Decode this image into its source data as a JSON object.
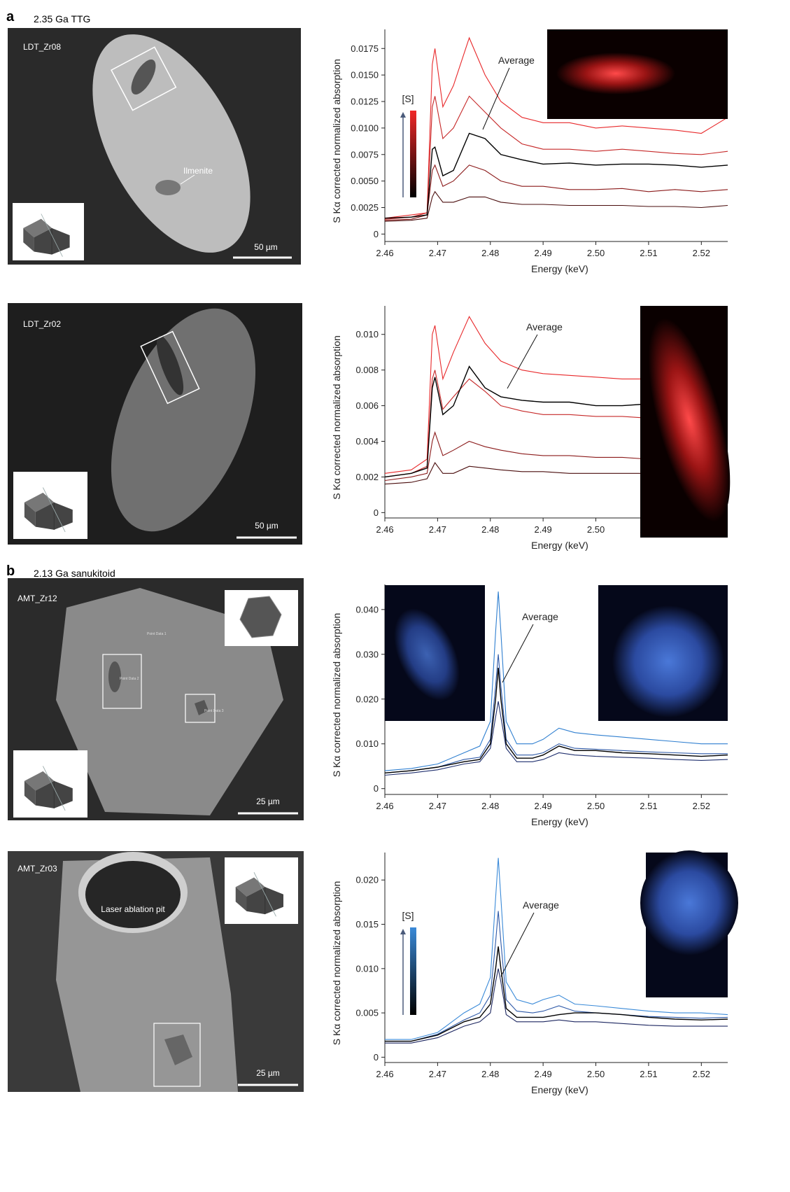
{
  "panel_labels": [
    {
      "letter": "a",
      "title": "2.35 Ga TTG"
    },
    {
      "letter": "b",
      "title": "2.13 Ga sanukitoid"
    }
  ],
  "images": [
    {
      "sample": "LDT_Zr08",
      "scale_bar": "50 µm",
      "annotations": [
        "Ilmenite"
      ]
    },
    {
      "sample": "LDT_Zr02",
      "scale_bar": "50 µm"
    },
    {
      "sample": "AMT_Zr12",
      "scale_bar": "25 µm",
      "annotations": [
        "Point Data 1",
        "Point Data 2",
        "Point Data 3"
      ]
    },
    {
      "sample": "AMT_Zr03",
      "scale_bar": "25 µm",
      "annotations": [
        "Laser ablation pit"
      ]
    }
  ],
  "chart_data": [
    {
      "type": "line",
      "xlabel": "Energy (keV)",
      "ylabel": "S Kα corrected normalized absorption",
      "annotation": "Average",
      "colorbar_label": "[S]",
      "xlim": [
        2.46,
        2.525
      ],
      "ylim": [
        -0.0007,
        0.0193
      ],
      "xticks": [
        2.46,
        2.47,
        2.48,
        2.49,
        {
          "value": 2.5,
          "label": "2.50"
        },
        2.51,
        2.52
      ],
      "yticks": [
        0,
        0.0025,
        {
          "value": 0.005,
          "label": "0.0050"
        },
        0.0075,
        {
          "value": 0.01,
          "label": "0.0100"
        },
        0.0125,
        {
          "value": 0.015,
          "label": "0.0150"
        },
        0.0175
      ],
      "x": [
        2.46,
        2.465,
        2.468,
        2.469,
        2.4695,
        2.471,
        2.473,
        2.476,
        2.479,
        2.482,
        2.486,
        2.49,
        2.495,
        2.5,
        2.505,
        2.51,
        2.515,
        2.52,
        2.525
      ],
      "series": [
        {
          "color": "#e8282a",
          "values": [
            0.0015,
            0.0018,
            0.002,
            0.016,
            0.0175,
            0.012,
            0.014,
            0.0185,
            0.015,
            0.0125,
            0.011,
            0.0105,
            0.0105,
            0.01,
            0.0102,
            0.01,
            0.0098,
            0.0095,
            0.011
          ]
        },
        {
          "color": "#c62828",
          "values": [
            0.0014,
            0.0016,
            0.002,
            0.012,
            0.013,
            0.009,
            0.01,
            0.013,
            0.0115,
            0.01,
            0.0085,
            0.008,
            0.008,
            0.0078,
            0.008,
            0.0078,
            0.0076,
            0.0075,
            0.0078
          ]
        },
        {
          "color": "#8b1a1a",
          "values": [
            0.0013,
            0.0014,
            0.0018,
            0.006,
            0.0065,
            0.0045,
            0.005,
            0.0065,
            0.006,
            0.005,
            0.0045,
            0.0045,
            0.0042,
            0.0042,
            0.0043,
            0.004,
            0.0042,
            0.004,
            0.0042
          ]
        },
        {
          "color": "#4a0d0d",
          "values": [
            0.0012,
            0.0013,
            0.0015,
            0.0035,
            0.004,
            0.003,
            0.003,
            0.0035,
            0.0035,
            0.003,
            0.0028,
            0.0028,
            0.0027,
            0.0027,
            0.0027,
            0.0026,
            0.0026,
            0.0025,
            0.0027
          ]
        },
        {
          "color": "#000000",
          "values": [
            0.0015,
            0.0016,
            0.0018,
            0.008,
            0.0082,
            0.0055,
            0.006,
            0.0095,
            0.009,
            0.0075,
            0.007,
            0.0066,
            0.0067,
            0.0065,
            0.0066,
            0.0066,
            0.0065,
            0.0063,
            0.0065
          ]
        }
      ]
    },
    {
      "type": "line",
      "xlabel": "Energy (keV)",
      "ylabel": "S Kα corrected normalized absorption",
      "annotation": "Average",
      "xlim": [
        2.46,
        2.525
      ],
      "ylim": [
        -0.0003,
        0.0116
      ],
      "xticks": [
        2.46,
        2.47,
        2.48,
        2.49,
        {
          "value": 2.5,
          "label": "2.50"
        },
        2.51,
        2.52
      ],
      "yticks": [
        0,
        0.002,
        0.004,
        0.006,
        0.008,
        {
          "value": 0.01,
          "label": "0.010"
        }
      ],
      "x": [
        2.46,
        2.465,
        2.468,
        2.469,
        2.4695,
        2.471,
        2.473,
        2.476,
        2.479,
        2.482,
        2.486,
        2.49,
        2.495,
        2.5,
        2.505,
        2.51,
        2.515,
        2.52,
        2.525
      ],
      "series": [
        {
          "color": "#e8282a",
          "values": [
            0.0022,
            0.0024,
            0.003,
            0.01,
            0.0105,
            0.0075,
            0.009,
            0.011,
            0.0095,
            0.0085,
            0.008,
            0.0078,
            0.0077,
            0.0076,
            0.0075,
            0.0075,
            0.0074,
            0.0073,
            0.0074
          ]
        },
        {
          "color": "#c62828",
          "values": [
            0.002,
            0.0022,
            0.0026,
            0.0075,
            0.008,
            0.0058,
            0.0065,
            0.0075,
            0.0068,
            0.006,
            0.0057,
            0.0055,
            0.0055,
            0.0054,
            0.0054,
            0.0053,
            0.0053,
            0.0052,
            0.0053
          ]
        },
        {
          "color": "#8b1a1a",
          "values": [
            0.0018,
            0.002,
            0.0022,
            0.004,
            0.0045,
            0.0032,
            0.0035,
            0.004,
            0.0037,
            0.0035,
            0.0033,
            0.0032,
            0.0032,
            0.0031,
            0.0031,
            0.003,
            0.003,
            0.003,
            0.003
          ]
        },
        {
          "color": "#4a0d0d",
          "values": [
            0.0016,
            0.0017,
            0.0019,
            0.0025,
            0.0028,
            0.0022,
            0.0022,
            0.0026,
            0.0025,
            0.0024,
            0.0023,
            0.0023,
            0.0022,
            0.0022,
            0.0022,
            0.0022,
            0.0022,
            0.0021,
            0.0022
          ]
        },
        {
          "color": "#000000",
          "values": [
            0.002,
            0.0022,
            0.0025,
            0.007,
            0.0076,
            0.0055,
            0.006,
            0.0082,
            0.007,
            0.0065,
            0.0063,
            0.0062,
            0.0062,
            0.006,
            0.006,
            0.0061,
            0.006,
            0.006,
            0.006
          ]
        }
      ]
    },
    {
      "type": "line",
      "xlabel": "Energy (keV)",
      "ylabel": "S Kα corrected normalized absorption",
      "annotation": "Average",
      "xlim": [
        2.46,
        2.525
      ],
      "ylim": [
        -0.0013,
        0.0456
      ],
      "xticks": [
        2.46,
        2.47,
        2.48,
        2.49,
        {
          "value": 2.5,
          "label": "2.50"
        },
        2.51,
        2.52
      ],
      "yticks": [
        0,
        {
          "value": 0.01,
          "label": "0.010"
        },
        {
          "value": 0.02,
          "label": "0.020"
        },
        {
          "value": 0.03,
          "label": "0.030"
        },
        {
          "value": 0.04,
          "label": "0.040"
        }
      ],
      "x": [
        2.46,
        2.465,
        2.47,
        2.475,
        2.478,
        2.48,
        2.481,
        2.4815,
        2.482,
        2.483,
        2.485,
        2.488,
        2.49,
        2.493,
        2.496,
        2.5,
        2.505,
        2.51,
        2.515,
        2.52,
        2.525
      ],
      "series": [
        {
          "color": "#2f7fd0",
          "values": [
            0.004,
            0.0045,
            0.0055,
            0.008,
            0.0095,
            0.015,
            0.035,
            0.044,
            0.035,
            0.015,
            0.01,
            0.01,
            0.011,
            0.0135,
            0.0125,
            0.012,
            0.0115,
            0.011,
            0.0105,
            0.01,
            0.01
          ]
        },
        {
          "color": "#2f5aa8",
          "values": [
            0.0035,
            0.004,
            0.0048,
            0.0065,
            0.007,
            0.011,
            0.023,
            0.03,
            0.023,
            0.011,
            0.0075,
            0.0075,
            0.008,
            0.01,
            0.009,
            0.0088,
            0.0085,
            0.0082,
            0.008,
            0.0078,
            0.0078
          ]
        },
        {
          "color": "#1f2f6e",
          "values": [
            0.003,
            0.0035,
            0.0042,
            0.0055,
            0.006,
            0.009,
            0.016,
            0.0195,
            0.016,
            0.009,
            0.006,
            0.006,
            0.0065,
            0.008,
            0.0075,
            0.0072,
            0.007,
            0.0068,
            0.0065,
            0.0063,
            0.0065
          ]
        },
        {
          "color": "#000000",
          "values": [
            0.0035,
            0.004,
            0.0048,
            0.006,
            0.0065,
            0.01,
            0.02,
            0.027,
            0.02,
            0.01,
            0.0068,
            0.0068,
            0.0075,
            0.0095,
            0.0085,
            0.0085,
            0.008,
            0.0078,
            0.0075,
            0.0072,
            0.0075
          ]
        }
      ]
    },
    {
      "type": "line",
      "xlabel": "Energy (keV)",
      "ylabel": "S Kα corrected normalized absorption",
      "annotation": "Average",
      "colorbar_label": "[S]",
      "xlim": [
        2.46,
        2.525
      ],
      "ylim": [
        -0.0006,
        0.0231
      ],
      "xticks": [
        2.46,
        2.47,
        2.48,
        2.49,
        {
          "value": 2.5,
          "label": "2.50"
        },
        2.51,
        2.52
      ],
      "yticks": [
        0,
        0.005,
        {
          "value": 0.01,
          "label": "0.010"
        },
        0.015,
        {
          "value": 0.02,
          "label": "0.020"
        }
      ],
      "x": [
        2.46,
        2.465,
        2.47,
        2.475,
        2.478,
        2.48,
        2.481,
        2.4815,
        2.482,
        2.483,
        2.485,
        2.488,
        2.49,
        2.493,
        2.496,
        2.5,
        2.505,
        2.51,
        2.515,
        2.52,
        2.525
      ],
      "series": [
        {
          "color": "#3a8ad8",
          "values": [
            0.002,
            0.002,
            0.0028,
            0.005,
            0.006,
            0.009,
            0.018,
            0.0225,
            0.018,
            0.0085,
            0.0065,
            0.006,
            0.0065,
            0.007,
            0.006,
            0.0058,
            0.0055,
            0.0052,
            0.005,
            0.005,
            0.0048
          ]
        },
        {
          "color": "#2f5aa8",
          "values": [
            0.0018,
            0.0018,
            0.0026,
            0.0042,
            0.005,
            0.007,
            0.013,
            0.0165,
            0.013,
            0.0065,
            0.0052,
            0.005,
            0.0052,
            0.0058,
            0.0052,
            0.005,
            0.0048,
            0.0046,
            0.0045,
            0.0044,
            0.0045
          ]
        },
        {
          "color": "#1c2660",
          "values": [
            0.0016,
            0.0016,
            0.0022,
            0.0035,
            0.004,
            0.005,
            0.0085,
            0.01,
            0.0085,
            0.0048,
            0.004,
            0.004,
            0.004,
            0.0042,
            0.004,
            0.004,
            0.0038,
            0.0036,
            0.0035,
            0.0035,
            0.0035
          ]
        },
        {
          "color": "#000000",
          "values": [
            0.0018,
            0.0018,
            0.0025,
            0.004,
            0.0045,
            0.006,
            0.01,
            0.0125,
            0.01,
            0.0055,
            0.0045,
            0.0045,
            0.0045,
            0.0048,
            0.005,
            0.005,
            0.0048,
            0.0045,
            0.0043,
            0.0042,
            0.0043
          ]
        }
      ]
    }
  ]
}
